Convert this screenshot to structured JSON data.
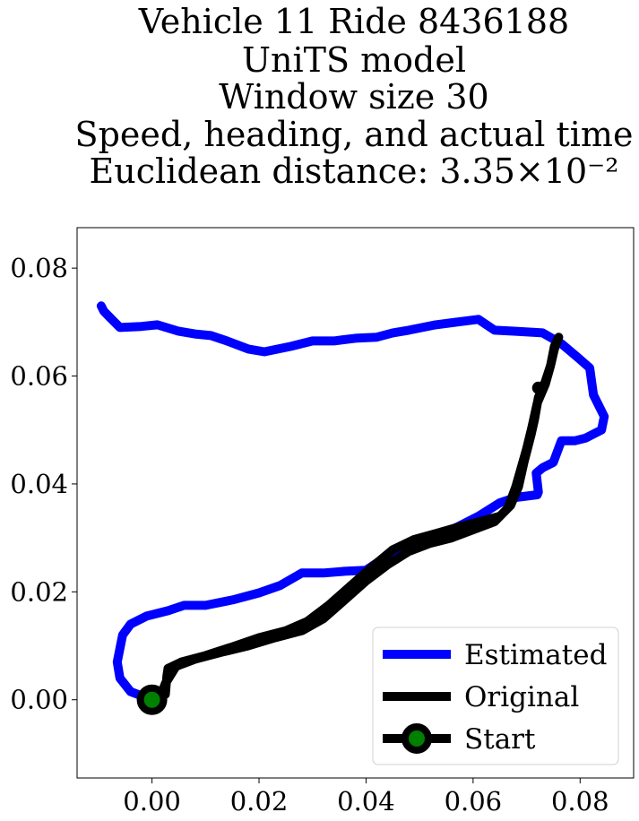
{
  "chart_data": {
    "type": "line",
    "title_lines": [
      "Vehicle 11 Ride 8436188",
      "UniTS model",
      "Window size 30",
      "Speed, heading, and actual time",
      "Euclidean distance: 3.35×10⁻²"
    ],
    "xlabel": "",
    "ylabel": "",
    "xlim": [
      -0.014,
      0.09
    ],
    "ylim": [
      -0.0145,
      0.0875
    ],
    "xticks": [
      0.0,
      0.02,
      0.04,
      0.06,
      0.08
    ],
    "xtick_labels": [
      "0.00",
      "0.02",
      "0.04",
      "0.06",
      "0.08"
    ],
    "yticks": [
      0.0,
      0.02,
      0.04,
      0.06,
      0.08
    ],
    "ytick_labels": [
      "0.00",
      "0.02",
      "0.04",
      "0.06",
      "0.08"
    ],
    "grid": false,
    "legend_position": "lower-right",
    "series": [
      {
        "name": "Estimated",
        "color": "#0000ff",
        "points": [
          [
            0.0,
            0.0
          ],
          [
            -0.004,
            0.0015
          ],
          [
            -0.006,
            0.004
          ],
          [
            -0.0065,
            0.007
          ],
          [
            -0.006,
            0.0095
          ],
          [
            -0.0055,
            0.012
          ],
          [
            -0.004,
            0.014
          ],
          [
            -0.001,
            0.0155
          ],
          [
            0.003,
            0.0165
          ],
          [
            0.006,
            0.0175
          ],
          [
            0.01,
            0.0175
          ],
          [
            0.015,
            0.0185
          ],
          [
            0.02,
            0.0198
          ],
          [
            0.024,
            0.0212
          ],
          [
            0.028,
            0.0235
          ],
          [
            0.032,
            0.0235
          ],
          [
            0.036,
            0.0238
          ],
          [
            0.04,
            0.024
          ],
          [
            0.043,
            0.026
          ],
          [
            0.047,
            0.0275
          ],
          [
            0.052,
            0.03
          ],
          [
            0.057,
            0.032
          ],
          [
            0.061,
            0.034
          ],
          [
            0.065,
            0.0365
          ],
          [
            0.068,
            0.0375
          ],
          [
            0.072,
            0.038
          ],
          [
            0.0722,
            0.0385
          ],
          [
            0.0718,
            0.042
          ],
          [
            0.073,
            0.043
          ],
          [
            0.075,
            0.044
          ],
          [
            0.0765,
            0.048
          ],
          [
            0.079,
            0.048
          ],
          [
            0.081,
            0.0485
          ],
          [
            0.084,
            0.05
          ],
          [
            0.0845,
            0.0525
          ],
          [
            0.0825,
            0.0565
          ],
          [
            0.0818,
            0.0615
          ],
          [
            0.0795,
            0.0635
          ],
          [
            0.0765,
            0.066
          ],
          [
            0.073,
            0.068
          ],
          [
            0.068,
            0.0683
          ],
          [
            0.064,
            0.0685
          ],
          [
            0.061,
            0.0705
          ],
          [
            0.057,
            0.07
          ],
          [
            0.053,
            0.0695
          ],
          [
            0.048,
            0.0685
          ],
          [
            0.045,
            0.068
          ],
          [
            0.042,
            0.0672
          ],
          [
            0.038,
            0.067
          ],
          [
            0.034,
            0.0665
          ],
          [
            0.03,
            0.0665
          ],
          [
            0.026,
            0.0655
          ],
          [
            0.021,
            0.0645
          ],
          [
            0.018,
            0.065
          ],
          [
            0.014,
            0.0665
          ],
          [
            0.011,
            0.0675
          ],
          [
            0.008,
            0.0678
          ],
          [
            0.005,
            0.0683
          ],
          [
            0.001,
            0.0695
          ],
          [
            -0.002,
            0.0692
          ],
          [
            -0.006,
            0.069
          ],
          [
            -0.008,
            0.071
          ],
          [
            -0.009,
            0.072
          ],
          [
            -0.0095,
            0.073
          ]
        ]
      },
      {
        "name": "Original",
        "color": "#000000",
        "points": [
          [
            0.0,
            0.0
          ],
          [
            0.0025,
            0.001
          ],
          [
            0.0028,
            0.0045
          ],
          [
            0.003,
            0.0058
          ],
          [
            0.0055,
            0.007
          ],
          [
            0.01,
            0.0082
          ],
          [
            0.015,
            0.0098
          ],
          [
            0.02,
            0.0115
          ],
          [
            0.025,
            0.0128
          ],
          [
            0.029,
            0.0145
          ],
          [
            0.033,
            0.0175
          ],
          [
            0.037,
            0.021
          ],
          [
            0.041,
            0.0245
          ],
          [
            0.045,
            0.0278
          ],
          [
            0.049,
            0.0297
          ],
          [
            0.053,
            0.0308
          ],
          [
            0.058,
            0.0322
          ],
          [
            0.062,
            0.0332
          ],
          [
            0.065,
            0.034
          ],
          [
            0.067,
            0.036
          ],
          [
            0.0685,
            0.0395
          ],
          [
            0.0695,
            0.044
          ],
          [
            0.0708,
            0.049
          ],
          [
            0.0715,
            0.052
          ],
          [
            0.0722,
            0.056
          ],
          [
            0.0735,
            0.059
          ],
          [
            0.0745,
            0.062
          ],
          [
            0.0752,
            0.065
          ],
          [
            0.076,
            0.0672
          ],
          [
            0.0752,
            0.0655
          ],
          [
            0.0745,
            0.062
          ],
          [
            0.0735,
            0.0585
          ],
          [
            0.072,
            0.055
          ],
          [
            0.071,
            0.0505
          ],
          [
            0.07,
            0.0465
          ],
          [
            0.069,
            0.043
          ],
          [
            0.068,
            0.0395
          ],
          [
            0.0665,
            0.0355
          ],
          [
            0.064,
            0.033
          ],
          [
            0.06,
            0.0315
          ],
          [
            0.056,
            0.03
          ],
          [
            0.052,
            0.029
          ],
          [
            0.048,
            0.0275
          ],
          [
            0.044,
            0.025
          ],
          [
            0.04,
            0.022
          ],
          [
            0.036,
            0.0185
          ],
          [
            0.032,
            0.015
          ],
          [
            0.028,
            0.0128
          ],
          [
            0.023,
            0.0115
          ],
          [
            0.018,
            0.01
          ],
          [
            0.013,
            0.0088
          ],
          [
            0.008,
            0.0075
          ],
          [
            0.0045,
            0.0062
          ],
          [
            0.0025,
            0.003
          ],
          [
            0.0015,
            0.0005
          ]
        ]
      }
    ],
    "markers": [
      {
        "name": "Start",
        "x": 0.0,
        "y": 0.0,
        "face": "#008000",
        "edge": "#000000"
      },
      {
        "x": 0.0722,
        "y": 0.0578,
        "face": "#000000",
        "edge": "#000000"
      }
    ],
    "legend": [
      {
        "label": "Estimated",
        "style": "line",
        "color": "#0000ff"
      },
      {
        "label": "Original",
        "style": "line",
        "color": "#000000"
      },
      {
        "label": "Start",
        "style": "line-marker",
        "color": "#000000",
        "marker_face": "#008000"
      }
    ]
  }
}
